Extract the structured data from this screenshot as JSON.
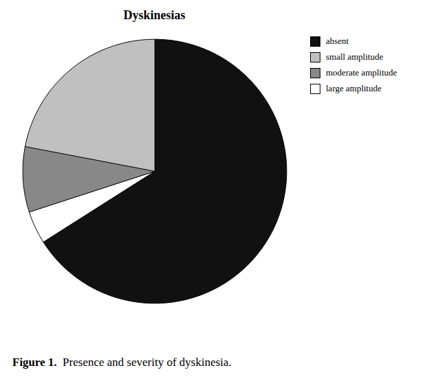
{
  "chart_data": {
    "type": "pie",
    "title": "Dyskinesias",
    "categories": [
      "absent",
      "large amplitude",
      "moderate amplitude",
      "small amplitude"
    ],
    "values": [
      66,
      4,
      8,
      22
    ],
    "colors": [
      "#111111",
      "#ffffff",
      "#888888",
      "#c0c0c0"
    ],
    "legend": "upper right",
    "caption": "Figure 1. Presence and severity of dyskinesia."
  }
}
